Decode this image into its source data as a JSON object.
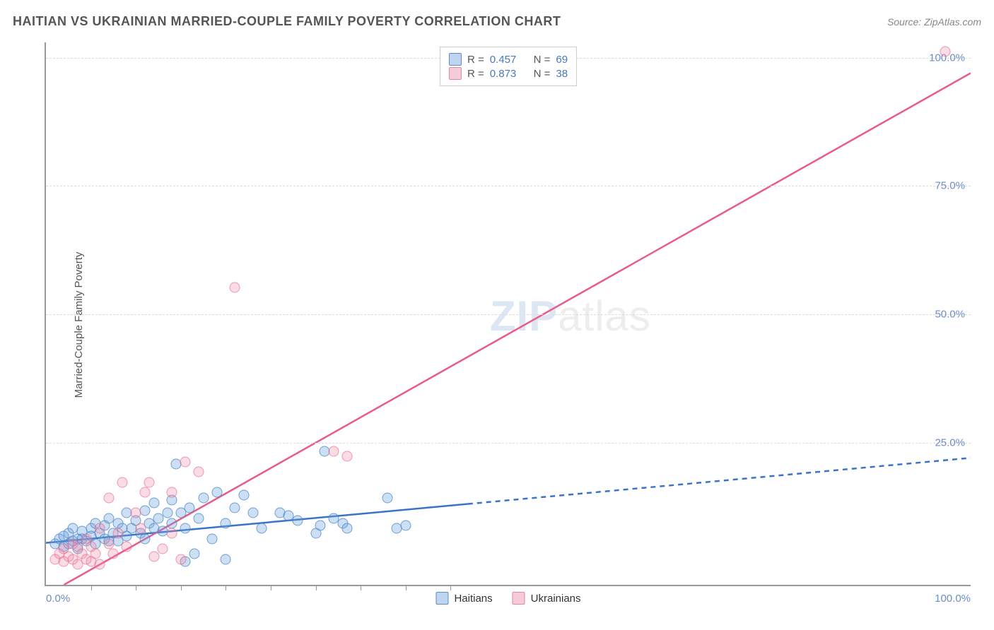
{
  "header": {
    "title": "HAITIAN VS UKRAINIAN MARRIED-COUPLE FAMILY POVERTY CORRELATION CHART",
    "source_prefix": "Source: ",
    "source_name": "ZipAtlas.com"
  },
  "watermark": {
    "zip": "ZIP",
    "atlas": "atlas"
  },
  "chart": {
    "type": "scatter",
    "y_label": "Married-Couple Family Poverty",
    "x_min": 0,
    "x_max": 103,
    "y_min": -3,
    "y_max": 103,
    "x_tick_labels": {
      "left": "0.0%",
      "right": "100.0%"
    },
    "x_minor_ticks": [
      5,
      10,
      15,
      20,
      25,
      30,
      35,
      40,
      45
    ],
    "y_gridlines": [
      25,
      50,
      75,
      100
    ],
    "y_tick_labels": [
      "25.0%",
      "50.0%",
      "75.0%",
      "100.0%"
    ],
    "grid_color": "#dddddd",
    "background_color": "#ffffff",
    "axis_color": "#999999",
    "tick_label_color": "#6b8cc4",
    "series": [
      {
        "key": "haitians",
        "label": "Haitians",
        "marker_fill": "rgba(108,162,220,0.35)",
        "marker_stroke": "rgba(70,130,200,0.7)",
        "line_color": "#3b73c8",
        "line_width": 2.5,
        "R": "0.457",
        "N": "69",
        "regression": {
          "x1": 0,
          "y1": 5.2,
          "x2_solid": 47,
          "y2_solid": 12.8,
          "x2_dash": 103,
          "y2_dash": 21.8
        },
        "points": [
          [
            1,
            5
          ],
          [
            1.5,
            6
          ],
          [
            2,
            4.5
          ],
          [
            2,
            6.5
          ],
          [
            2.5,
            7
          ],
          [
            2.5,
            5
          ],
          [
            3,
            5.5
          ],
          [
            3,
            8
          ],
          [
            3.5,
            6
          ],
          [
            3.5,
            4
          ],
          [
            4,
            7.5
          ],
          [
            4,
            6
          ],
          [
            4.5,
            5.5
          ],
          [
            5,
            8
          ],
          [
            5,
            6.5
          ],
          [
            5.5,
            5
          ],
          [
            5.5,
            9
          ],
          [
            6,
            7
          ],
          [
            6.5,
            6
          ],
          [
            6.5,
            8.5
          ],
          [
            7,
            5.5
          ],
          [
            7,
            10
          ],
          [
            7.5,
            7
          ],
          [
            8,
            9
          ],
          [
            8,
            5.5
          ],
          [
            8.5,
            8
          ],
          [
            9,
            11
          ],
          [
            9,
            6.5
          ],
          [
            9.5,
            8
          ],
          [
            10,
            9.5
          ],
          [
            10.5,
            7
          ],
          [
            11,
            6
          ],
          [
            11,
            11.5
          ],
          [
            11.5,
            9
          ],
          [
            12,
            8
          ],
          [
            12,
            13
          ],
          [
            12.5,
            10
          ],
          [
            13,
            7.5
          ],
          [
            13.5,
            11
          ],
          [
            14,
            9
          ],
          [
            14,
            13.5
          ],
          [
            14.5,
            20.5
          ],
          [
            15,
            11
          ],
          [
            15.5,
            8
          ],
          [
            15.5,
            1.5
          ],
          [
            16,
            12
          ],
          [
            16.5,
            3
          ],
          [
            17,
            10
          ],
          [
            17.5,
            14
          ],
          [
            18.5,
            6
          ],
          [
            19,
            15
          ],
          [
            20,
            2
          ],
          [
            20,
            9
          ],
          [
            21,
            12
          ],
          [
            22,
            14.5
          ],
          [
            23,
            11
          ],
          [
            24,
            8
          ],
          [
            26,
            11
          ],
          [
            27,
            10.5
          ],
          [
            28,
            9.5
          ],
          [
            30,
            7
          ],
          [
            30.5,
            8.5
          ],
          [
            31,
            23
          ],
          [
            32,
            10
          ],
          [
            33,
            9
          ],
          [
            33.5,
            8
          ],
          [
            38,
            14
          ],
          [
            39,
            8
          ],
          [
            40,
            8.5
          ]
        ]
      },
      {
        "key": "ukrainians",
        "label": "Ukrainians",
        "marker_fill": "rgba(238,140,170,0.30)",
        "marker_stroke": "rgba(230,100,140,0.6)",
        "line_color": "#ea5a8a",
        "line_width": 2.5,
        "R": "0.873",
        "N": "38",
        "regression": {
          "x1": 2,
          "y1": -3,
          "x2_solid": 103,
          "y2_solid": 97
        },
        "points": [
          [
            1,
            2
          ],
          [
            1.5,
            3
          ],
          [
            2,
            1.5
          ],
          [
            2,
            4
          ],
          [
            2.5,
            2.5
          ],
          [
            3,
            2
          ],
          [
            3,
            5
          ],
          [
            3.5,
            4.5
          ],
          [
            3.5,
            1
          ],
          [
            4,
            3
          ],
          [
            4.5,
            2
          ],
          [
            4.5,
            6
          ],
          [
            5,
            1.5
          ],
          [
            5,
            4.5
          ],
          [
            5.5,
            3
          ],
          [
            6,
            8
          ],
          [
            6,
            1
          ],
          [
            7,
            5
          ],
          [
            7,
            14
          ],
          [
            7.5,
            3
          ],
          [
            8,
            7
          ],
          [
            8.5,
            17
          ],
          [
            9,
            4.5
          ],
          [
            10,
            11
          ],
          [
            10.5,
            8
          ],
          [
            11,
            15
          ],
          [
            11.5,
            17
          ],
          [
            12,
            2.5
          ],
          [
            13,
            4
          ],
          [
            14,
            7
          ],
          [
            14,
            15
          ],
          [
            15.5,
            21
          ],
          [
            15,
            2
          ],
          [
            17,
            19
          ],
          [
            21,
            55
          ],
          [
            32,
            23
          ],
          [
            33.5,
            22
          ],
          [
            100,
            101
          ]
        ]
      }
    ]
  },
  "legend_top": {
    "R_label": "R =",
    "N_label": "N ="
  }
}
